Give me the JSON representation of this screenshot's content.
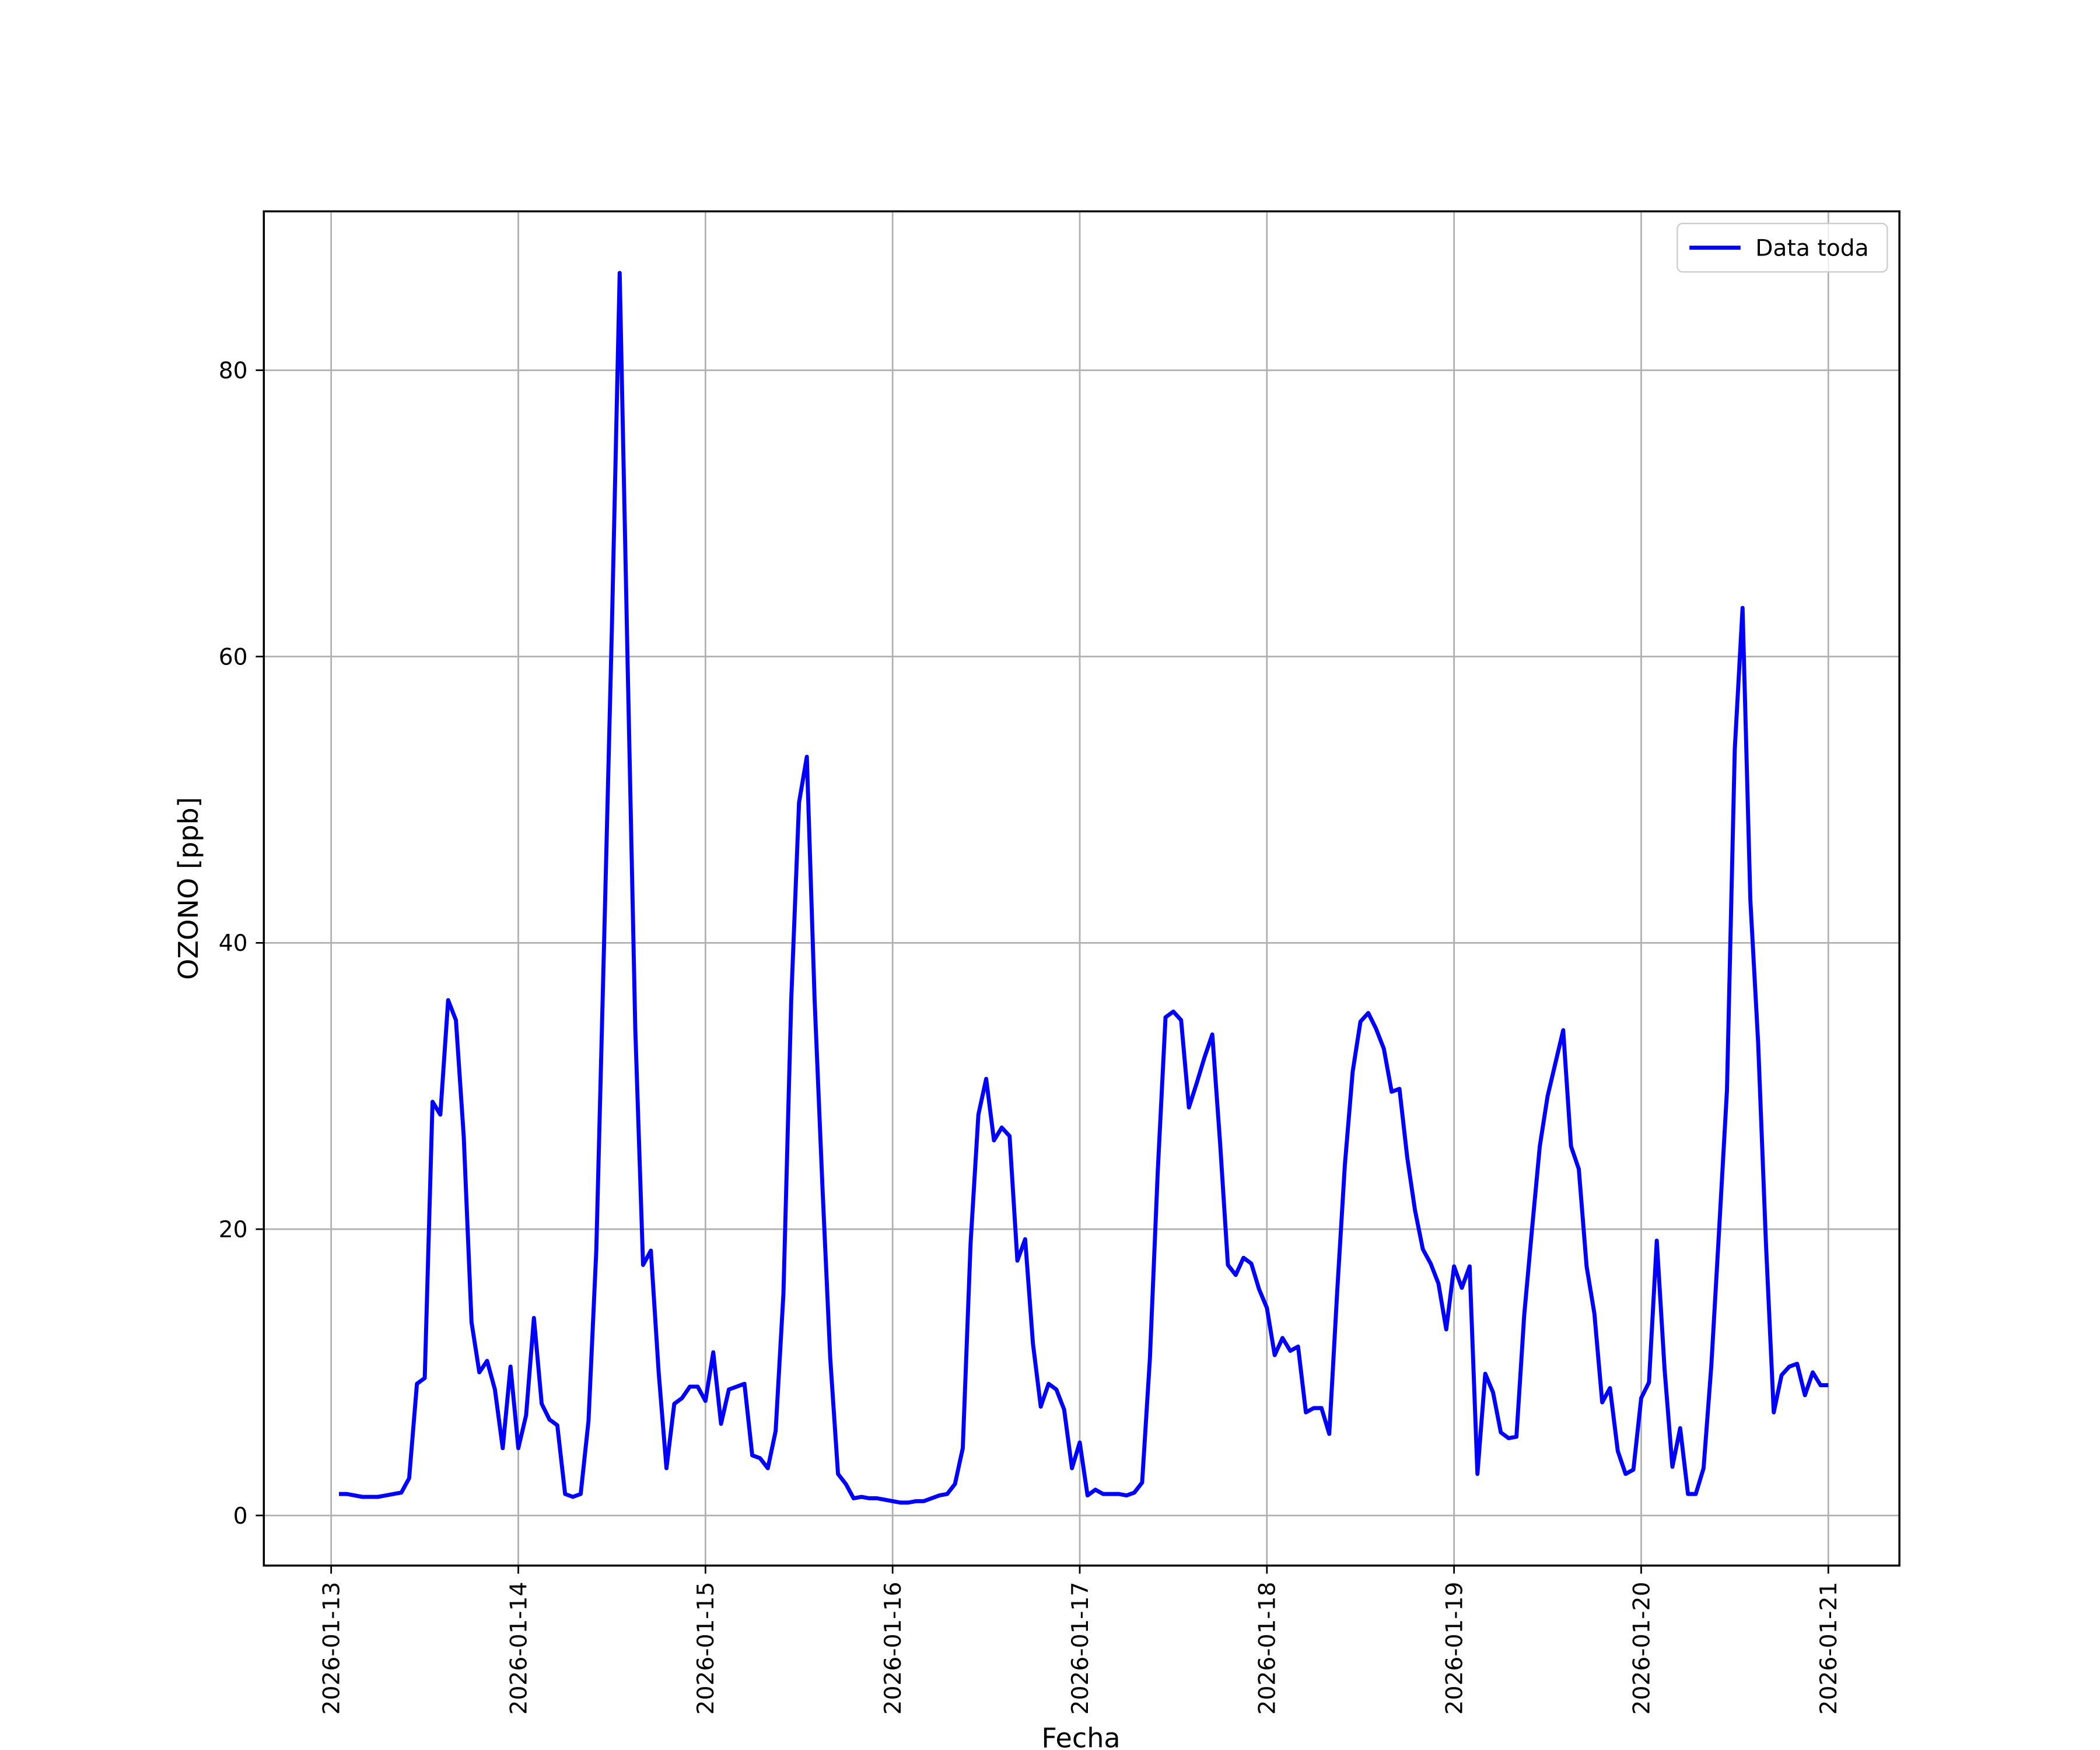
{
  "chart_data": {
    "type": "line",
    "x_label": "Fecha",
    "y_label": "OZONO [ppb]",
    "x": [
      "2026-01-13T01:00",
      "2026-01-13T02:00",
      "2026-01-13T03:00",
      "2026-01-13T04:00",
      "2026-01-13T05:00",
      "2026-01-13T06:00",
      "2026-01-13T07:00",
      "2026-01-13T08:00",
      "2026-01-13T09:00",
      "2026-01-13T10:00",
      "2026-01-13T11:00",
      "2026-01-13T12:00",
      "2026-01-13T13:00",
      "2026-01-13T14:00",
      "2026-01-13T15:00",
      "2026-01-13T16:00",
      "2026-01-13T17:00",
      "2026-01-13T18:00",
      "2026-01-13T19:00",
      "2026-01-13T20:00",
      "2026-01-13T21:00",
      "2026-01-13T22:00",
      "2026-01-13T23:00",
      "2026-01-14T00:00",
      "2026-01-14T01:00",
      "2026-01-14T02:00",
      "2026-01-14T03:00",
      "2026-01-14T04:00",
      "2026-01-14T05:00",
      "2026-01-14T06:00",
      "2026-01-14T07:00",
      "2026-01-14T08:00",
      "2026-01-14T09:00",
      "2026-01-14T10:00",
      "2026-01-14T11:00",
      "2026-01-14T12:00",
      "2026-01-14T13:00",
      "2026-01-14T14:00",
      "2026-01-14T15:00",
      "2026-01-14T16:00",
      "2026-01-14T17:00",
      "2026-01-14T18:00",
      "2026-01-14T19:00",
      "2026-01-14T20:00",
      "2026-01-14T21:00",
      "2026-01-14T22:00",
      "2026-01-14T23:00",
      "2026-01-15T00:00",
      "2026-01-15T01:00",
      "2026-01-15T02:00",
      "2026-01-15T03:00",
      "2026-01-15T04:00",
      "2026-01-15T05:00",
      "2026-01-15T06:00",
      "2026-01-15T07:00",
      "2026-01-15T08:00",
      "2026-01-15T09:00",
      "2026-01-15T10:00",
      "2026-01-15T11:00",
      "2026-01-15T12:00",
      "2026-01-15T13:00",
      "2026-01-15T14:00",
      "2026-01-15T15:00",
      "2026-01-15T16:00",
      "2026-01-15T17:00",
      "2026-01-15T18:00",
      "2026-01-15T19:00",
      "2026-01-15T20:00",
      "2026-01-15T21:00",
      "2026-01-15T22:00",
      "2026-01-15T23:00",
      "2026-01-16T00:00",
      "2026-01-16T01:00",
      "2026-01-16T02:00",
      "2026-01-16T03:00",
      "2026-01-16T04:00",
      "2026-01-16T05:00",
      "2026-01-16T06:00",
      "2026-01-16T07:00",
      "2026-01-16T08:00",
      "2026-01-16T09:00",
      "2026-01-16T10:00",
      "2026-01-16T11:00",
      "2026-01-16T12:00",
      "2026-01-16T13:00",
      "2026-01-16T14:00",
      "2026-01-16T15:00",
      "2026-01-16T16:00",
      "2026-01-16T17:00",
      "2026-01-16T18:00",
      "2026-01-16T19:00",
      "2026-01-16T20:00",
      "2026-01-16T21:00",
      "2026-01-16T22:00",
      "2026-01-16T23:00",
      "2026-01-17T00:00",
      "2026-01-17T01:00",
      "2026-01-17T02:00",
      "2026-01-17T03:00",
      "2026-01-17T04:00",
      "2026-01-17T05:00",
      "2026-01-17T06:00",
      "2026-01-17T07:00",
      "2026-01-17T08:00",
      "2026-01-17T09:00",
      "2026-01-17T10:00",
      "2026-01-17T11:00",
      "2026-01-17T12:00",
      "2026-01-17T13:00",
      "2026-01-17T14:00",
      "2026-01-17T15:00",
      "2026-01-17T16:00",
      "2026-01-17T17:00",
      "2026-01-17T18:00",
      "2026-01-17T19:00",
      "2026-01-17T20:00",
      "2026-01-17T21:00",
      "2026-01-17T22:00",
      "2026-01-17T23:00",
      "2026-01-18T00:00",
      "2026-01-18T01:00",
      "2026-01-18T02:00",
      "2026-01-18T03:00",
      "2026-01-18T04:00",
      "2026-01-18T05:00",
      "2026-01-18T06:00",
      "2026-01-18T07:00",
      "2026-01-18T08:00",
      "2026-01-18T09:00",
      "2026-01-18T10:00",
      "2026-01-18T11:00",
      "2026-01-18T12:00",
      "2026-01-18T13:00",
      "2026-01-18T14:00",
      "2026-01-18T15:00",
      "2026-01-18T16:00",
      "2026-01-18T17:00",
      "2026-01-18T18:00",
      "2026-01-18T19:00",
      "2026-01-18T20:00",
      "2026-01-18T21:00",
      "2026-01-18T22:00",
      "2026-01-18T23:00",
      "2026-01-19T00:00",
      "2026-01-19T01:00",
      "2026-01-19T02:00",
      "2026-01-19T03:00",
      "2026-01-19T04:00",
      "2026-01-19T05:00",
      "2026-01-19T06:00",
      "2026-01-19T07:00",
      "2026-01-19T08:00",
      "2026-01-19T09:00",
      "2026-01-19T10:00",
      "2026-01-19T11:00",
      "2026-01-19T12:00",
      "2026-01-19T13:00",
      "2026-01-19T14:00",
      "2026-01-19T15:00",
      "2026-01-19T16:00",
      "2026-01-19T17:00",
      "2026-01-19T18:00",
      "2026-01-19T19:00",
      "2026-01-19T20:00",
      "2026-01-19T21:00",
      "2026-01-19T22:00",
      "2026-01-19T23:00",
      "2026-01-20T00:00",
      "2026-01-20T01:00",
      "2026-01-20T02:00",
      "2026-01-20T03:00",
      "2026-01-20T04:00",
      "2026-01-20T05:00",
      "2026-01-20T06:00",
      "2026-01-20T07:00",
      "2026-01-20T08:00",
      "2026-01-20T09:00",
      "2026-01-20T10:00",
      "2026-01-20T11:00",
      "2026-01-20T12:00",
      "2026-01-20T13:00",
      "2026-01-20T14:00",
      "2026-01-20T15:00",
      "2026-01-20T16:00",
      "2026-01-20T17:00",
      "2026-01-20T18:00",
      "2026-01-20T19:00",
      "2026-01-20T20:00",
      "2026-01-20T21:00",
      "2026-01-20T22:00",
      "2026-01-20T23:00",
      "2026-01-21T00:00"
    ],
    "series": [
      {
        "name": "Data toda",
        "color": "#0000ff",
        "values": [
          1.5,
          1.5,
          1.4,
          1.3,
          1.3,
          1.3,
          1.4,
          1.5,
          1.6,
          2.6,
          9.2,
          9.6,
          28.9,
          28,
          36,
          34.6,
          26.5,
          13.5,
          10,
          10.8,
          8.8,
          4.7,
          10.4,
          4.7,
          7,
          13.8,
          7.8,
          6.7,
          6.3,
          1.5,
          1.3,
          1.5,
          6.6,
          18.5,
          40,
          62,
          86.8,
          60,
          34,
          17.5,
          18.5,
          10,
          3.3,
          7.8,
          8.2,
          9,
          9,
          8,
          11.4,
          6.4,
          8.8,
          9,
          9.2,
          4.2,
          4,
          3.3,
          5.9,
          15.5,
          36,
          49.8,
          53,
          36,
          23,
          11,
          2.9,
          2.2,
          1.2,
          1.3,
          1.2,
          1.2,
          1.1,
          1,
          0.9,
          0.9,
          1,
          1,
          1.2,
          1.4,
          1.5,
          2.2,
          4.7,
          19,
          28,
          30.5,
          26.2,
          27.1,
          26.5,
          17.8,
          19.3,
          12,
          7.6,
          9.2,
          8.8,
          7.4,
          3.3,
          5.1,
          1.4,
          1.8,
          1.5,
          1.5,
          1.5,
          1.4,
          1.6,
          2.3,
          11,
          24,
          34.8,
          35.2,
          34.6,
          28.5,
          30.2,
          32,
          33.6,
          26,
          17.5,
          16.8,
          18,
          17.6,
          15.8,
          14.5,
          11.2,
          12.4,
          11.5,
          11.8,
          7.2,
          7.5,
          7.5,
          5.7,
          15.5,
          24.5,
          31,
          34.5,
          35.1,
          34,
          32.6,
          29.6,
          29.8,
          25,
          21.3,
          18.6,
          17.6,
          16.2,
          13,
          17.4,
          15.9,
          17.4,
          2.9,
          9.9,
          8.6,
          5.8,
          5.4,
          5.5,
          14,
          20,
          25.8,
          29.3,
          31.6,
          33.9,
          25.8,
          24.2,
          17.4,
          14.1,
          7.9,
          8.9,
          4.5,
          2.9,
          3.2,
          8.2,
          9.3,
          19.2,
          10.2,
          3.4,
          6.1,
          1.5,
          1.5,
          3.3,
          10.5,
          20,
          29.7,
          53.5,
          63.4,
          43,
          33,
          19,
          7.2,
          9.8,
          10.4,
          10.6,
          8.4,
          10,
          9.1,
          9.1
        ]
      }
    ],
    "xlim": [
      "2026-01-12T15:22",
      "2026-01-21T09:07"
    ],
    "xticks": [
      "2026-01-13",
      "2026-01-14",
      "2026-01-15",
      "2026-01-16",
      "2026-01-17",
      "2026-01-18",
      "2026-01-19",
      "2026-01-20",
      "2026-01-21"
    ],
    "ylim": [
      -3.5,
      91.1
    ],
    "yticks": [
      0,
      20,
      40,
      60,
      80
    ],
    "grid": true,
    "legend": "upper right"
  }
}
